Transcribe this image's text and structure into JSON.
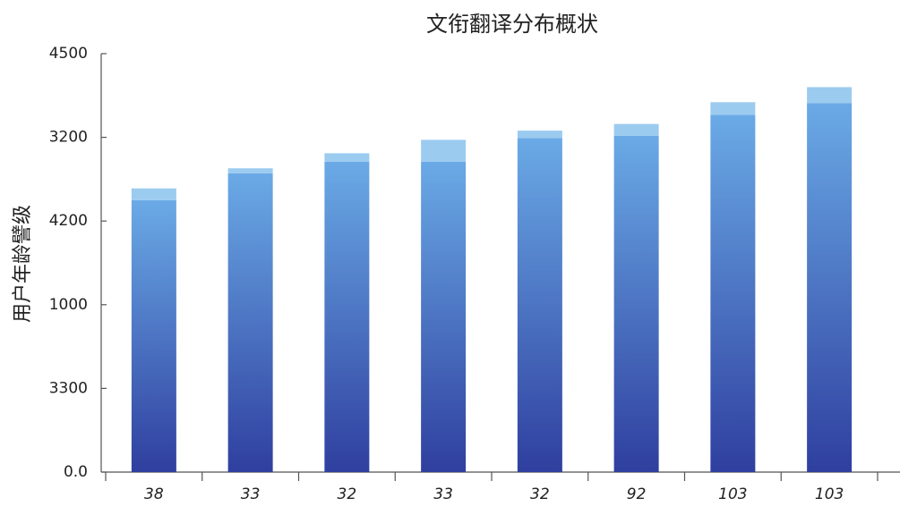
{
  "chart_data": {
    "type": "stacked_bar",
    "title": "文衔翻译分布概状",
    "y_label": "用户年龄譬级",
    "categories": [
      "38",
      "33",
      "32",
      "33",
      "32",
      "92",
      "103",
      "103"
    ],
    "series": [
      {
        "color": [
          "#2f3f9f",
          "#6aaae6"
        ],
        "values": [
          3.25,
          3.57,
          3.71,
          3.71,
          3.99,
          4.02,
          4.27,
          4.41
        ]
      },
      {
        "color": "#9ccbf0",
        "values": [
          0.14,
          0.06,
          0.1,
          0.26,
          0.09,
          0.14,
          0.15,
          0.19
        ]
      }
    ],
    "ylim": [
      0,
      5
    ],
    "yticks": [
      {
        "value": 0,
        "label": "0.0"
      },
      {
        "value": 1,
        "label": "3300"
      },
      {
        "value": 2,
        "label": "1000"
      },
      {
        "value": 3,
        "label": "4200"
      },
      {
        "value": 4,
        "label": "3200"
      },
      {
        "value": 5,
        "label": "4500"
      }
    ]
  }
}
